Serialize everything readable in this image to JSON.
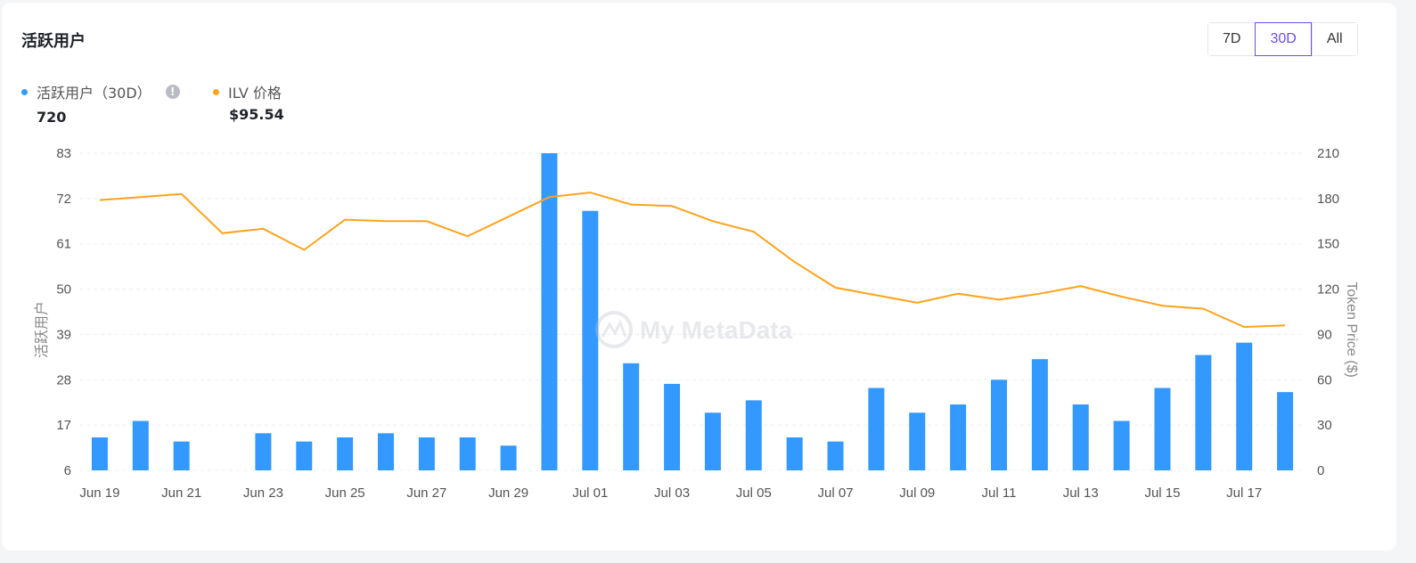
{
  "header": {
    "title": "活跃用户",
    "ranges": [
      "7D",
      "30D",
      "All"
    ],
    "active_range": "30D"
  },
  "legend": {
    "users_label": "活跃用户（30D）",
    "users_value": "720",
    "price_label": "ILV 价格",
    "price_value": "$95.54"
  },
  "watermark": "My MetaData",
  "colors": {
    "bars": "#3399ff",
    "line": "#ffa31a",
    "accent": "#6c4cf0"
  },
  "chart_data": {
    "type": "bar",
    "xlabel": "",
    "ylabel": "活跃用户",
    "y2label": "Token Price ($)",
    "x_tick_labels": [
      "Jun 19",
      "Jun 21",
      "Jun 23",
      "Jun 25",
      "Jun 27",
      "Jun 29",
      "Jul 01",
      "Jul 03",
      "Jul 05",
      "Jul 07",
      "Jul 09",
      "Jul 11",
      "Jul 13",
      "Jul 15",
      "Jul 17"
    ],
    "y_ticks": [
      6,
      17,
      28,
      39,
      50,
      61,
      72,
      83
    ],
    "y2_ticks": [
      0,
      30,
      60,
      90,
      120,
      150,
      180,
      210
    ],
    "ylim": [
      6,
      83
    ],
    "y2lim": [
      0,
      210
    ],
    "categories": [
      "Jun 19",
      "Jun 20",
      "Jun 21",
      "Jun 22",
      "Jun 23",
      "Jun 24",
      "Jun 25",
      "Jun 26",
      "Jun 27",
      "Jun 28",
      "Jun 29",
      "Jun 30",
      "Jul 01",
      "Jul 02",
      "Jul 03",
      "Jul 04",
      "Jul 05",
      "Jul 06",
      "Jul 07",
      "Jul 08",
      "Jul 09",
      "Jul 10",
      "Jul 11",
      "Jul 12",
      "Jul 13",
      "Jul 14",
      "Jul 15",
      "Jul 16",
      "Jul 17",
      "Jul 18"
    ],
    "series": [
      {
        "name": "活跃用户（30D）",
        "type": "bar",
        "axis": "left",
        "values": [
          14,
          18,
          13,
          null,
          15,
          13,
          14,
          15,
          14,
          14,
          12,
          83,
          69,
          32,
          27,
          20,
          23,
          14,
          13,
          26,
          20,
          22,
          28,
          33,
          22,
          18,
          26,
          34,
          37,
          25
        ]
      },
      {
        "name": "ILV 价格",
        "type": "line",
        "axis": "right",
        "values": [
          179,
          181,
          183,
          157,
          160,
          146,
          166,
          165,
          165,
          155,
          168,
          181,
          184,
          176,
          175,
          165,
          158,
          138,
          121,
          116,
          111,
          117,
          113,
          117,
          122,
          115,
          109,
          107,
          95,
          96
        ]
      }
    ],
    "grid": true,
    "legend_position": "top-left"
  }
}
